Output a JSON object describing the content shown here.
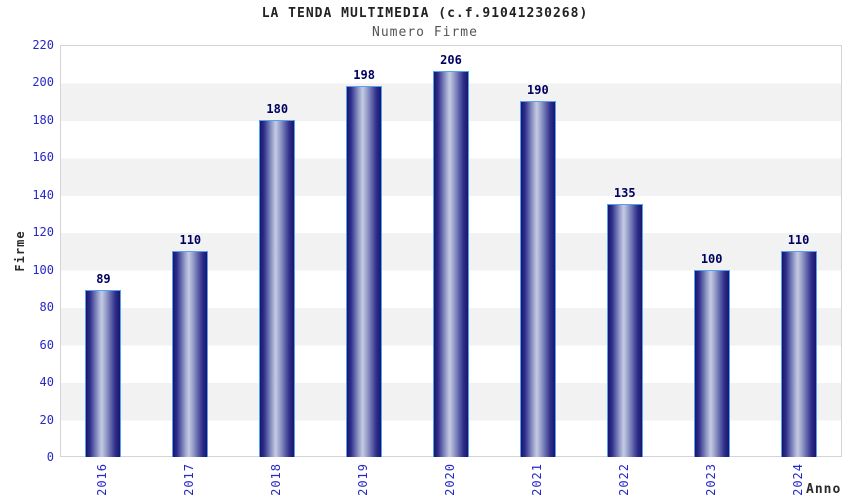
{
  "chart": {
    "title": "LA TENDA MULTIMEDIA (c.f.91041230268)",
    "subtitle": "Numero Firme",
    "ylabel": "Firme",
    "xlabel": "Anno"
  },
  "chart_data": {
    "type": "bar",
    "title": "LA TENDA MULTIMEDIA (c.f.91041230268)",
    "subtitle": "Numero Firme",
    "categories": [
      "2016",
      "2017",
      "2018",
      "2019",
      "2020",
      "2021",
      "2022",
      "2023",
      "2024"
    ],
    "values": [
      89,
      110,
      180,
      198,
      206,
      190,
      135,
      100,
      110
    ],
    "xlabel": "Anno",
    "ylabel": "Firme",
    "ylim": [
      0,
      220
    ],
    "y_ticks": [
      0,
      20,
      40,
      60,
      80,
      100,
      120,
      140,
      160,
      180,
      200,
      220
    ],
    "grid": "alternating-horizontal-bands",
    "legend_position": "none",
    "bar_value_labels_shown": true
  },
  "colors": {
    "title": "#222222",
    "subtitle": "#555555",
    "tick": "#2828c8",
    "value-label": "#000060",
    "bar-edge": "#16166e",
    "bar-highlight": "#c6cae2",
    "bar-border": "#57a1f1",
    "band": "#f2f2f2",
    "plot-border": "#d4d4d4",
    "axis-label": "#2b2b2b"
  }
}
